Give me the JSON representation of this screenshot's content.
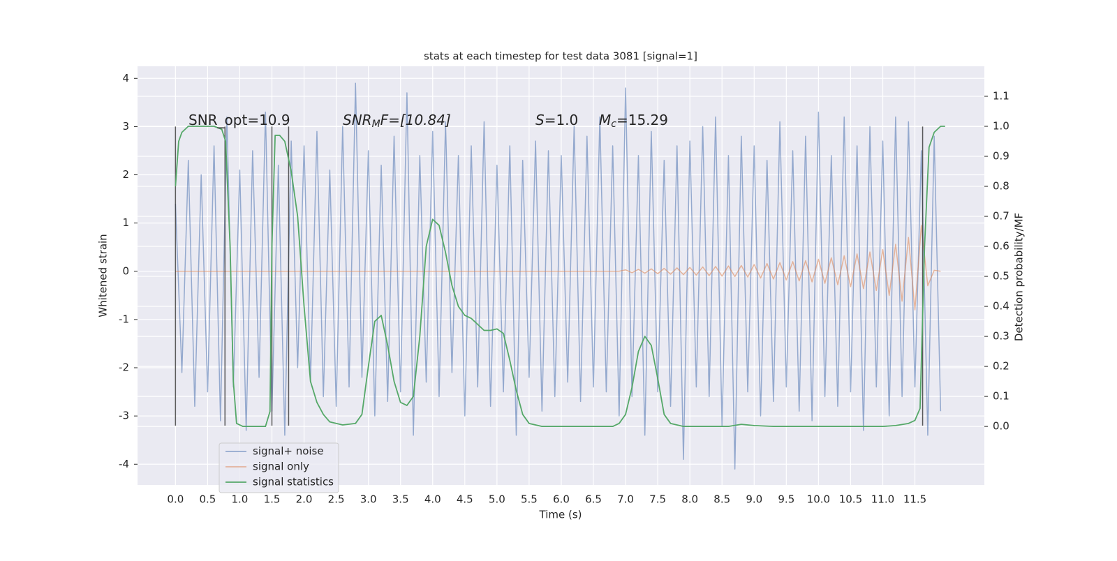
{
  "chart_data": {
    "type": "line",
    "title": "stats at each timestep for test data 3081 [signal=1]",
    "xlabel": "Time (s)",
    "ylabel": "Whitened strain",
    "y2label": "Detection probability/MF",
    "xlim": [
      -0.59,
      12.58
    ],
    "ylim": [
      -4.43,
      4.25
    ],
    "y2lim": [
      -0.195,
      1.2
    ],
    "xticks": [
      {
        "value": 0,
        "label": "0.0"
      },
      0.5,
      {
        "value": 1,
        "label": "1.0"
      },
      1.5,
      {
        "value": 2,
        "label": "2.0"
      },
      2.5,
      {
        "value": 3,
        "label": "3.0"
      },
      3.5,
      {
        "value": 4,
        "label": "4.0"
      },
      4.5,
      {
        "value": 5,
        "label": "5.0"
      },
      5.5,
      {
        "value": 6,
        "label": "6.0"
      },
      6.5,
      {
        "value": 7,
        "label": "7.0"
      },
      7.5,
      {
        "value": 8,
        "label": "8.0"
      },
      8.5,
      {
        "value": 9,
        "label": "9.0"
      },
      9.5,
      {
        "value": 10,
        "label": "10.0"
      },
      10.5,
      {
        "value": 11,
        "label": "11.0"
      },
      11.5
    ],
    "yticks": [
      -4,
      -3,
      -2,
      -1,
      0,
      1,
      2,
      3,
      4
    ],
    "y2ticks": [
      {
        "value": 0,
        "label": "0.0"
      },
      0.1,
      0.2,
      0.3,
      0.4,
      0.5,
      0.6,
      0.7,
      0.8,
      0.9,
      {
        "value": 1,
        "label": "1.0"
      },
      1.1
    ],
    "grid": true,
    "legend": "lower left",
    "vline_color": "#333333",
    "vline_span": [
      -3.2,
      3.0
    ],
    "vlines": [
      0,
      0.77,
      1.5,
      1.76,
      11.62
    ],
    "annotations": [
      {
        "main": "SNR_opt=10.9"
      },
      {
        "main": "SNR",
        "sub": "M",
        "rest": "F=[10.84]"
      },
      {
        "main": "S",
        "rest": "=1.0"
      },
      {
        "main": "M",
        "sub": "c",
        "rest": "=15.29"
      }
    ],
    "series": [
      {
        "name": "signal+ noise",
        "color": "#4c72b0",
        "x": [
          0,
          0.1,
          0.2,
          0.3,
          0.4,
          0.5,
          0.6,
          0.7,
          0.8,
          0.9,
          1,
          1.1,
          1.2,
          1.3,
          1.4,
          1.5,
          1.6,
          1.7,
          1.8,
          1.9,
          2,
          2.1,
          2.2,
          2.3,
          2.4,
          2.5,
          2.6,
          2.7,
          2.8,
          2.9,
          3,
          3.1,
          3.2,
          3.3,
          3.4,
          3.5,
          3.6,
          3.7,
          3.8,
          3.9,
          4,
          4.1,
          4.2,
          4.3,
          4.4,
          4.5,
          4.6,
          4.7,
          4.8,
          4.9,
          5,
          5.1,
          5.2,
          5.3,
          5.4,
          5.5,
          5.6,
          5.7,
          5.8,
          5.9,
          6,
          6.1,
          6.2,
          6.3,
          6.4,
          6.5,
          6.6,
          6.7,
          6.8,
          6.9,
          7,
          7.1,
          7.2,
          7.3,
          7.4,
          7.5,
          7.6,
          7.7,
          7.8,
          7.9,
          8,
          8.1,
          8.2,
          8.3,
          8.4,
          8.5,
          8.6,
          8.7,
          8.8,
          8.9,
          9,
          9.1,
          9.2,
          9.3,
          9.4,
          9.5,
          9.6,
          9.7,
          9.8,
          9.9,
          10,
          10.1,
          10.2,
          10.3,
          10.4,
          10.5,
          10.6,
          10.7,
          10.8,
          10.9,
          11,
          11.1,
          11.2,
          11.3,
          11.4,
          11.5,
          11.6,
          11.7,
          11.8,
          11.9
        ],
        "values": [
          1.4,
          -2.1,
          2.3,
          -2.8,
          2.0,
          -2.5,
          2.6,
          -3.1,
          3.2,
          -2.4,
          2.1,
          -3.3,
          2.5,
          -2.2,
          3.3,
          -2.9,
          2.2,
          -3.4,
          2.7,
          -2.0,
          2.6,
          -2.3,
          2.9,
          -2.6,
          2.1,
          -2.8,
          3.0,
          -2.4,
          3.9,
          -2.2,
          2.5,
          -3.0,
          2.2,
          -2.7,
          2.8,
          -2.5,
          3.7,
          -3.4,
          2.4,
          -2.3,
          2.9,
          -2.6,
          3.1,
          -2.1,
          2.4,
          -3.0,
          2.6,
          -2.4,
          3.1,
          -2.8,
          2.2,
          -2.5,
          2.6,
          -3.4,
          2.3,
          -2.2,
          2.7,
          -2.9,
          2.5,
          -2.6,
          2.4,
          -2.3,
          3.0,
          -2.7,
          2.8,
          -2.4,
          3.2,
          -2.5,
          2.6,
          -3.0,
          3.8,
          -2.6,
          2.4,
          -3.4,
          2.9,
          -2.5,
          2.3,
          -2.8,
          2.6,
          -3.9,
          2.7,
          -2.4,
          3.0,
          -2.6,
          3.2,
          -3.2,
          2.4,
          -4.1,
          2.8,
          -2.5,
          2.6,
          -3.0,
          2.3,
          -2.7,
          3.1,
          -2.4,
          2.5,
          -2.9,
          2.8,
          -3.1,
          3.3,
          -2.6,
          2.4,
          -2.8,
          3.2,
          -2.5,
          2.6,
          -3.3,
          3.0,
          -2.4,
          2.7,
          -3.0,
          3.2,
          -2.6,
          3.1,
          -2.4,
          2.5,
          -3.4,
          2.8,
          -2.9
        ]
      },
      {
        "name": "signal only",
        "color": "#dd8452",
        "x": [
          0,
          0.1,
          0.2,
          0.3,
          0.4,
          0.5,
          0.6,
          0.7,
          0.8,
          0.9,
          1,
          1.1,
          1.2,
          1.3,
          1.4,
          1.5,
          1.6,
          1.7,
          1.8,
          1.9,
          2,
          2.1,
          2.2,
          2.3,
          2.4,
          2.5,
          2.6,
          2.7,
          2.8,
          2.9,
          3,
          3.1,
          3.2,
          3.3,
          3.4,
          3.5,
          3.6,
          3.7,
          3.8,
          3.9,
          4,
          4.1,
          4.2,
          4.3,
          4.4,
          4.5,
          4.6,
          4.7,
          4.8,
          4.9,
          5,
          5.1,
          5.2,
          5.3,
          5.4,
          5.5,
          5.6,
          5.7,
          5.8,
          5.9,
          6,
          6.1,
          6.2,
          6.3,
          6.4,
          6.5,
          6.6,
          6.7,
          6.8,
          6.9,
          7,
          7.1,
          7.2,
          7.3,
          7.4,
          7.5,
          7.6,
          7.7,
          7.8,
          7.9,
          8,
          8.1,
          8.2,
          8.3,
          8.4,
          8.5,
          8.6,
          8.7,
          8.8,
          8.9,
          9,
          9.1,
          9.2,
          9.3,
          9.4,
          9.5,
          9.6,
          9.7,
          9.8,
          9.9,
          10,
          10.1,
          10.2,
          10.3,
          10.4,
          10.5,
          10.6,
          10.7,
          10.8,
          10.9,
          11,
          11.1,
          11.2,
          11.3,
          11.4,
          11.5,
          11.6,
          11.7,
          11.8,
          11.9
        ],
        "values": [
          0,
          0,
          0,
          0,
          0,
          0,
          0,
          0,
          0,
          0,
          0,
          0,
          0,
          0,
          0,
          0,
          0,
          0,
          0,
          0,
          0,
          0,
          0,
          0,
          0,
          0,
          0,
          0,
          0,
          0,
          0,
          0,
          0,
          0,
          0,
          0,
          0,
          0,
          0,
          0,
          0,
          0,
          0,
          0,
          0,
          0,
          0,
          0,
          0,
          0,
          0,
          0,
          0,
          0,
          0,
          0,
          0,
          0,
          0,
          0,
          0,
          0,
          0,
          0,
          0,
          0,
          0,
          0,
          0,
          0,
          0.03,
          -0.03,
          0.04,
          -0.04,
          0.05,
          -0.05,
          0.06,
          -0.06,
          0.07,
          -0.07,
          0.08,
          -0.08,
          0.09,
          -0.09,
          0.1,
          -0.1,
          0.11,
          -0.11,
          0.12,
          -0.12,
          0.14,
          -0.14,
          0.16,
          -0.16,
          0.18,
          -0.18,
          0.2,
          -0.2,
          0.22,
          -0.22,
          0.25,
          -0.25,
          0.28,
          -0.28,
          0.32,
          -0.32,
          0.36,
          -0.36,
          0.4,
          -0.4,
          0.45,
          -0.5,
          0.56,
          -0.62,
          0.7,
          -0.8,
          0.95,
          -0.3,
          0.02,
          0
        ]
      },
      {
        "name": "signal statistics",
        "color": "#55a868",
        "axis": "y2",
        "x": [
          0,
          0.05,
          0.1,
          0.2,
          0.4,
          0.6,
          0.72,
          0.78,
          0.85,
          0.9,
          0.95,
          1.05,
          1.4,
          1.47,
          1.5,
          1.55,
          1.62,
          1.7,
          1.8,
          1.9,
          2,
          2.1,
          2.2,
          2.3,
          2.4,
          2.6,
          2.8,
          2.9,
          3,
          3.1,
          3.2,
          3.3,
          3.4,
          3.5,
          3.6,
          3.7,
          3.8,
          3.9,
          4,
          4.1,
          4.2,
          4.3,
          4.4,
          4.5,
          4.6,
          4.7,
          4.8,
          4.9,
          5,
          5.1,
          5.2,
          5.3,
          5.4,
          5.5,
          5.7,
          6.8,
          6.9,
          7,
          7.1,
          7.2,
          7.3,
          7.4,
          7.5,
          7.6,
          7.7,
          7.9,
          8.6,
          8.8,
          9,
          9.3,
          11,
          11.2,
          11.4,
          11.5,
          11.58,
          11.65,
          11.72,
          11.8,
          11.9,
          11.97
        ],
        "values": [
          0.8,
          0.95,
          0.98,
          1.0,
          1.0,
          1.0,
          0.99,
          0.95,
          0.6,
          0.15,
          0.01,
          0.0,
          0.0,
          0.05,
          0.6,
          0.97,
          0.97,
          0.95,
          0.85,
          0.7,
          0.4,
          0.15,
          0.08,
          0.04,
          0.015,
          0.005,
          0.01,
          0.04,
          0.2,
          0.35,
          0.37,
          0.27,
          0.15,
          0.08,
          0.07,
          0.1,
          0.3,
          0.6,
          0.69,
          0.67,
          0.58,
          0.47,
          0.4,
          0.37,
          0.36,
          0.34,
          0.32,
          0.32,
          0.325,
          0.31,
          0.22,
          0.12,
          0.04,
          0.01,
          0.0,
          0.0,
          0.01,
          0.04,
          0.13,
          0.25,
          0.3,
          0.27,
          0.16,
          0.04,
          0.01,
          0.0,
          0.0,
          0.007,
          0.003,
          0.0,
          0.0,
          0.003,
          0.01,
          0.02,
          0.06,
          0.6,
          0.93,
          0.98,
          1.0,
          1.0
        ]
      }
    ]
  }
}
